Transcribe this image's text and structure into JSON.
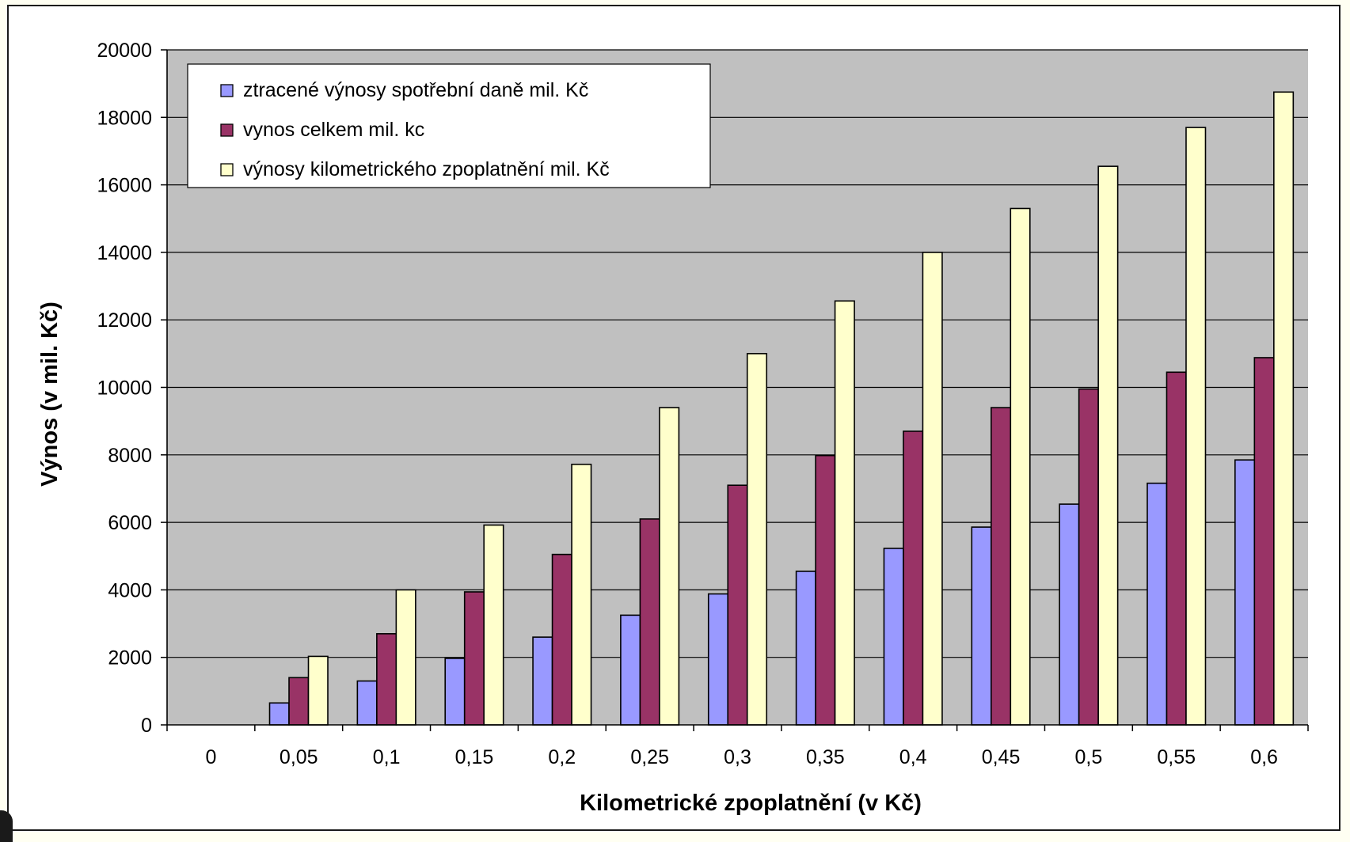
{
  "chart_data": {
    "type": "bar",
    "title": "",
    "xlabel": "Kilometrické zpoplatnění (v Kč)",
    "ylabel": "Výnos (v mil. Kč)",
    "ylim": [
      0,
      20000
    ],
    "yticks": [
      "0",
      "2000",
      "4000",
      "6000",
      "8000",
      "10000",
      "12000",
      "14000",
      "16000",
      "18000",
      "20000"
    ],
    "grid": true,
    "legend_position": "top-left",
    "categories": [
      "0",
      "0,05",
      "0,1",
      "0,15",
      "0,2",
      "0,25",
      "0,3",
      "0,35",
      "0,4",
      "0,45",
      "0,5",
      "0,55",
      "0,6"
    ],
    "series": [
      {
        "name": "ztracené výnosy spotřební daně mil. Kč",
        "color": "#9999ff",
        "values": [
          0,
          650,
          1300,
          1970,
          2600,
          3250,
          3880,
          4550,
          5230,
          5860,
          6540,
          7160,
          7850
        ]
      },
      {
        "name": "vynos celkem mil. kc",
        "color": "#993366",
        "values": [
          0,
          1400,
          2700,
          3940,
          5050,
          6100,
          7100,
          7980,
          8700,
          9400,
          9950,
          10450,
          10880
        ]
      },
      {
        "name": "výnosy kilometrického zpoplatnění mil. Kč",
        "color": "#ffffcc",
        "values": [
          0,
          2030,
          4000,
          5920,
          7720,
          9400,
          11000,
          12560,
          14000,
          15300,
          16550,
          17700,
          18750
        ]
      }
    ],
    "plot_background": "#c0c0c0"
  }
}
